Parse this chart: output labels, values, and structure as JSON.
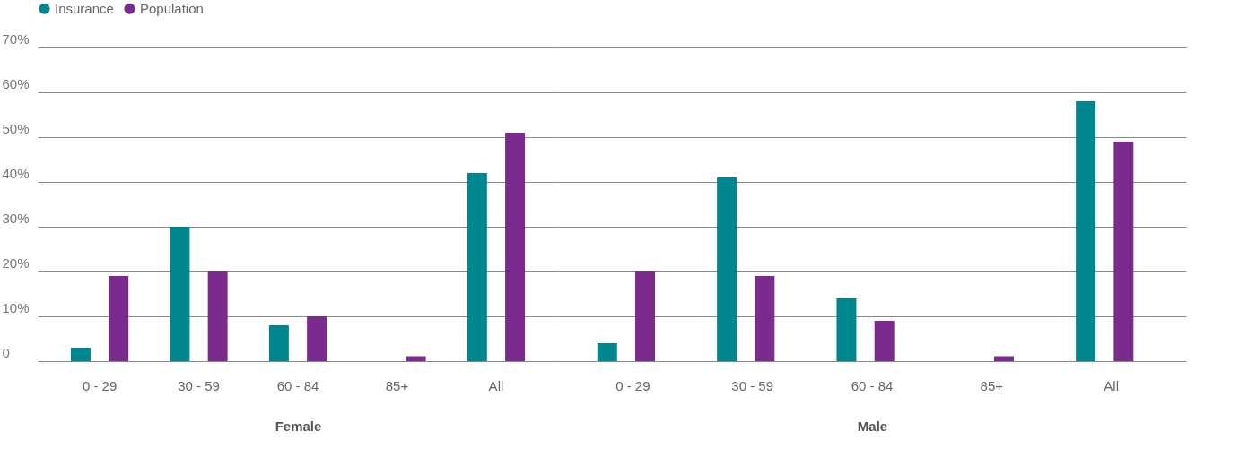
{
  "chart_data": [
    {
      "type": "bar",
      "xlabel": "Female",
      "categories": [
        "0 - 29",
        "30 - 59",
        "60 - 84",
        "85+",
        "All"
      ],
      "series": [
        {
          "name": "Insurance",
          "color": "#00868f",
          "values": [
            3.0,
            30.0,
            8.0,
            null,
            42.0
          ]
        },
        {
          "name": "Population",
          "color": "#7b2a8e",
          "values": [
            19.0,
            20.0,
            10.0,
            1.1,
            51.0
          ]
        }
      ],
      "ylim": [
        0,
        70
      ],
      "yticks": [
        {
          "value": 0,
          "label": "0"
        },
        {
          "value": 10,
          "label": "10%"
        },
        {
          "value": 20,
          "label": "20%"
        },
        {
          "value": 30,
          "label": "30%"
        },
        {
          "value": 40,
          "label": "40%"
        },
        {
          "value": 50,
          "label": "50%"
        },
        {
          "value": 60,
          "label": "60%"
        },
        {
          "value": 70,
          "label": "70%"
        }
      ],
      "grid": "y",
      "legend": "top left"
    },
    {
      "type": "bar",
      "xlabel": "Male",
      "categories": [
        "0 - 29",
        "30 - 59",
        "60 - 84",
        "85+",
        "All"
      ],
      "series": [
        {
          "name": "Insurance",
          "color": "#00868f",
          "values": [
            4.0,
            41.0,
            14.0,
            null,
            58.0
          ]
        },
        {
          "name": "Population",
          "color": "#7b2a8e",
          "values": [
            20.0,
            19.0,
            9.0,
            1.1,
            49.0
          ]
        }
      ],
      "ylim": [
        0,
        70
      ],
      "yticks": [
        {
          "value": 0,
          "label": null
        },
        {
          "value": 10,
          "label": null
        },
        {
          "value": 20,
          "label": null
        },
        {
          "value": 30,
          "label": null
        },
        {
          "value": 40,
          "label": null
        },
        {
          "value": 50,
          "label": null
        },
        {
          "value": 60,
          "label": null
        },
        {
          "value": 70,
          "label": null
        }
      ],
      "grid": "y",
      "tick_labels": "x"
    }
  ]
}
